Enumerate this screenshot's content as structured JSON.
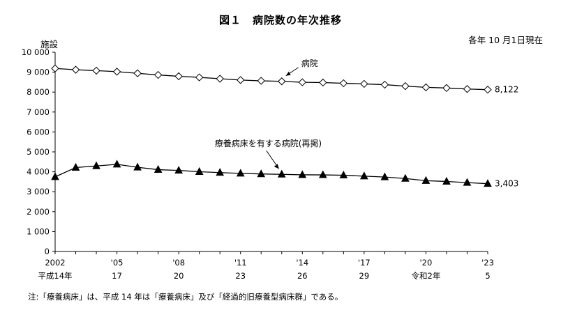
{
  "chart_data": {
    "type": "line",
    "title": "図１　病院数の年次推移",
    "date_note": "各年 10 月1日現在",
    "ylabel": "施設",
    "ylim": [
      0,
      10000
    ],
    "y_ticks": [
      "0",
      "1 000",
      "2 000",
      "3 000",
      "4 000",
      "5 000",
      "6 000",
      "7 000",
      "8 000",
      "9 000",
      "10 000"
    ],
    "x": [
      2002,
      2003,
      2004,
      2005,
      2006,
      2007,
      2008,
      2009,
      2010,
      2011,
      2012,
      2013,
      2014,
      2015,
      2016,
      2017,
      2018,
      2019,
      2020,
      2021,
      2022,
      2023
    ],
    "x_tick_labels": [
      {
        "year": 2002,
        "western": "2002",
        "japanese": "平成14年"
      },
      {
        "year": 2005,
        "western": "'05",
        "japanese": "17"
      },
      {
        "year": 2008,
        "western": "'08",
        "japanese": "20"
      },
      {
        "year": 2011,
        "western": "'11",
        "japanese": "23"
      },
      {
        "year": 2014,
        "western": "'14",
        "japanese": "26"
      },
      {
        "year": 2017,
        "western": "'17",
        "japanese": "29"
      },
      {
        "year": 2020,
        "western": "'20",
        "japanese": "令和2年"
      },
      {
        "year": 2023,
        "western": "'23",
        "japanese": "5"
      }
    ],
    "series": [
      {
        "name": "病院",
        "marker": "diamond-open",
        "end_label": "8,122",
        "values": [
          9187,
          9122,
          9077,
          9026,
          8943,
          8862,
          8794,
          8739,
          8670,
          8605,
          8565,
          8540,
          8493,
          8480,
          8442,
          8412,
          8372,
          8300,
          8238,
          8205,
          8156,
          8122
        ]
      },
      {
        "name": "療養病床を有する病院(再掲)",
        "marker": "triangle-filled",
        "end_label": "3,403",
        "values": [
          3746,
          4214,
          4293,
          4374,
          4225,
          4107,
          4067,
          4004,
          3960,
          3920,
          3892,
          3873,
          3848,
          3844,
          3827,
          3781,
          3736,
          3662,
          3554,
          3515,
          3457,
          3403
        ]
      }
    ],
    "grid": false,
    "footnote": "注:「療養病床」は、平成 14 年は「療養病床」及び「経過的旧療養型病床群」である。"
  }
}
